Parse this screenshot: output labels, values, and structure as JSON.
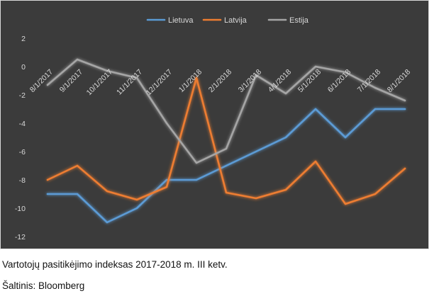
{
  "chart_data": {
    "type": "line",
    "categories": [
      "8/1/2017",
      "9/1/2017",
      "10/1/2017",
      "11/1/2017",
      "12/1/2017",
      "1/1/2018",
      "2/1/2018",
      "3/1/2018",
      "4/1/2018",
      "5/1/2018",
      "6/1/2018",
      "7/1/2018",
      "8/1/2018"
    ],
    "series": [
      {
        "name": "Lietuva",
        "color": "#5b9bd5",
        "values": [
          -9,
          -9,
          -11,
          -10,
          -8,
          -8,
          -7,
          -6,
          -5,
          -3,
          -5,
          -3,
          -3
        ]
      },
      {
        "name": "Latvija",
        "color": "#ed7d31",
        "values": [
          -8,
          -7,
          -8.8,
          -9.4,
          -8.5,
          -0.8,
          -8.9,
          -9.3,
          -8.7,
          -6.7,
          -9.7,
          -9,
          -7.2
        ]
      },
      {
        "name": "Estija",
        "color": "#a5a5a5",
        "values": [
          -1.3,
          0.5,
          -0.3,
          -0.8,
          -4,
          -6.8,
          -5.8,
          -0.6,
          -1.9,
          0,
          -0.4,
          -1.5,
          -2.4
        ]
      }
    ],
    "ylim": [
      -12,
      2
    ],
    "yticks": [
      "2",
      "0",
      "-2",
      "-4",
      "-6",
      "-8",
      "-10",
      "-12"
    ],
    "ytick_values": [
      2,
      0,
      -2,
      -4,
      -6,
      -8,
      -10,
      -12
    ],
    "legend": "top",
    "grid": false,
    "background": "#3b3b3b"
  },
  "captions": {
    "title": "Vartotojų pasitikėjimo indeksas 2017-2018 m. III ketv.",
    "source": "Šaltinis: Bloomberg"
  }
}
